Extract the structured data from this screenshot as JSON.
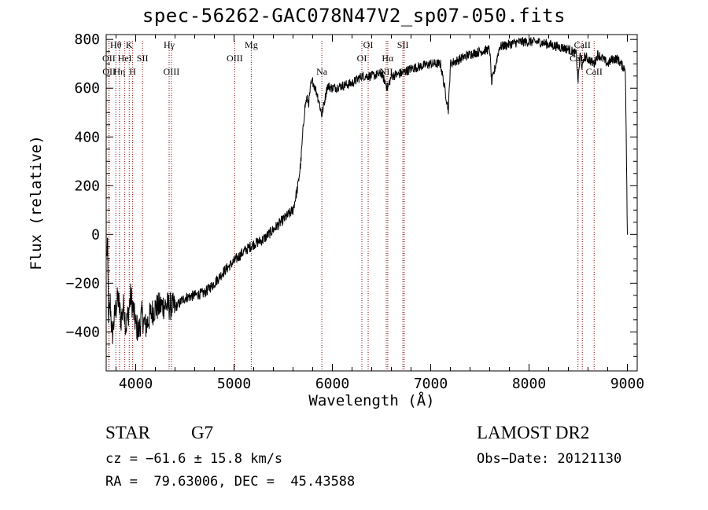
{
  "header": {
    "title": "spec-56262-GAC078N47V2_sp07-050.fits"
  },
  "chart_data": {
    "type": "line",
    "title": "spec-56262-GAC078N47V2_sp07-050.fits",
    "xlabel": "Wavelength (Å)",
    "ylabel": "Flux (relative)",
    "xlim": [
      3700,
      9100
    ],
    "ylim": [
      -560,
      820
    ],
    "x_ticks": [
      4000,
      5000,
      6000,
      7000,
      8000,
      9000
    ],
    "x_tick_labels": [
      "4000",
      "5000",
      "6000",
      "7000",
      "8000",
      "9000"
    ],
    "y_ticks": [
      -400,
      -200,
      0,
      200,
      400,
      600,
      800
    ],
    "y_tick_labels": [
      "−400",
      "−200",
      "0",
      "200",
      "400",
      "600",
      "800"
    ],
    "grid": false,
    "series": [
      {
        "x": [
          3705,
          3712,
          3725,
          3740,
          3760,
          3790,
          3820,
          3850,
          3880,
          3900,
          3930,
          3950,
          3970,
          4000,
          4030,
          4060,
          4100,
          4150,
          4200,
          4300,
          4400,
          4500,
          4600,
          4700,
          4800,
          4900,
          5000,
          5100,
          5200,
          5300,
          5400,
          5500,
          5600,
          5650,
          5680,
          5700,
          5720,
          5740,
          5760,
          5780,
          5800,
          5850,
          5893,
          5950,
          6000,
          6100,
          6200,
          6300,
          6400,
          6500,
          6563,
          6600,
          6700,
          6800,
          6900,
          7000,
          7100,
          7180,
          7200,
          7300,
          7400,
          7500,
          7600,
          7620,
          7700,
          7800,
          7900,
          8000,
          8100,
          8200,
          8300,
          8400,
          8480,
          8498,
          8520,
          8542,
          8560,
          8600,
          8662,
          8700,
          8800,
          8850,
          8900,
          8950,
          8980,
          9000
        ],
        "y": [
          -100,
          -20,
          -380,
          -270,
          -420,
          -320,
          -260,
          -350,
          -290,
          -380,
          -310,
          -250,
          -300,
          -370,
          -400,
          -330,
          -380,
          -330,
          -300,
          -290,
          -300,
          -260,
          -250,
          -240,
          -200,
          -150,
          -110,
          -70,
          -40,
          -20,
          20,
          60,
          100,
          200,
          300,
          420,
          520,
          560,
          540,
          610,
          630,
          570,
          490,
          610,
          600,
          610,
          620,
          650,
          650,
          660,
          600,
          650,
          660,
          680,
          690,
          700,
          700,
          510,
          700,
          720,
          740,
          750,
          760,
          620,
          770,
          780,
          790,
          790,
          790,
          780,
          770,
          760,
          740,
          630,
          740,
          680,
          730,
          720,
          700,
          740,
          700,
          720,
          720,
          690,
          680,
          -10
        ]
      }
    ],
    "lines": [
      {
        "label": "Hθ",
        "x": 3798,
        "row": 0
      },
      {
        "label": "OII",
        "x": 3727,
        "row": 1
      },
      {
        "label": "OII",
        "x": 3729,
        "row": 2
      },
      {
        "label": "HeI",
        "x": 3889,
        "row": 1
      },
      {
        "label": "Hη",
        "x": 3835,
        "row": 2
      },
      {
        "label": "K",
        "x": 3934,
        "row": 0
      },
      {
        "label": "SII",
        "x": 4069,
        "row": 1
      },
      {
        "label": "H",
        "x": 3969,
        "row": 2
      },
      {
        "label": "Hγ",
        "x": 4340,
        "row": 0
      },
      {
        "label": "OIII",
        "x": 4363,
        "row": 2
      },
      {
        "label": "OIII",
        "x": 5007,
        "row": 1
      },
      {
        "label": "Mg",
        "x": 5175,
        "row": 0
      },
      {
        "label": "Na",
        "x": 5893,
        "row": 2
      },
      {
        "label": "OI",
        "x": 6364,
        "row": 0
      },
      {
        "label": "OI",
        "x": 6300,
        "row": 1
      },
      {
        "label": "Hα",
        "x": 6563,
        "row": 1
      },
      {
        "label": "NII",
        "x": 6548,
        "row": 2
      },
      {
        "label": "SII",
        "x": 6717,
        "row": 0
      },
      {
        "label": "SII",
        "x": 6731,
        "row": 2
      },
      {
        "label": "CaII",
        "x": 8542,
        "row": 0
      },
      {
        "label": "CaII",
        "x": 8498,
        "row": 1
      },
      {
        "label": "CaII",
        "x": 8662,
        "row": 2
      }
    ],
    "line_color": "#8b0000"
  },
  "info": {
    "object_class": "STAR",
    "subclass": "G7",
    "survey": "LAMOST DR2",
    "cz": "cz = −61.6 ± 15.8 km/s",
    "obs_date": "Obs−Date: 20121130",
    "radec": "RA =  79.63006, DEC =  45.43588"
  }
}
